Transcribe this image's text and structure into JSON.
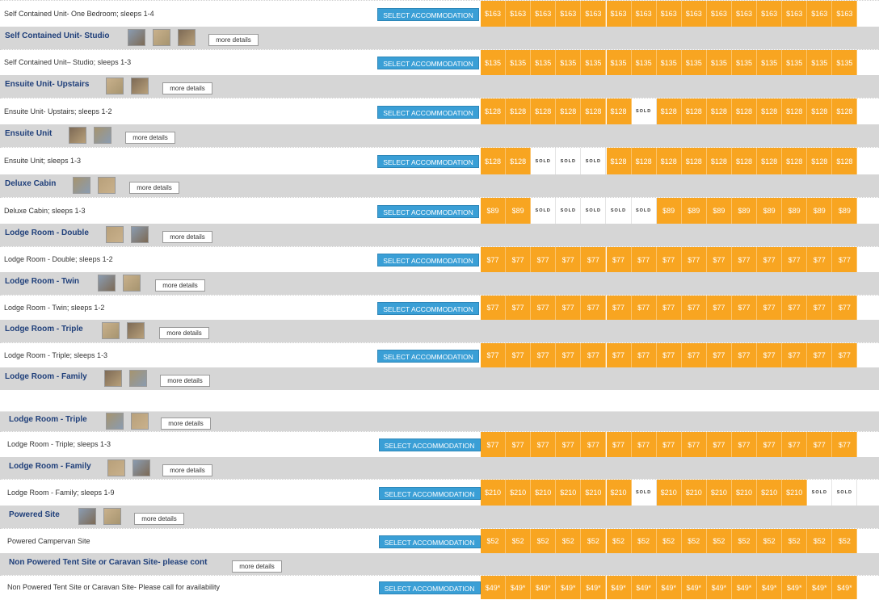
{
  "sections": [
    {
      "title": "",
      "thumbs": [],
      "more_label": "",
      "row_label": "Self Contained Unit- One Bedroom; sleeps 1-4",
      "select_label": "SELECT ACCOMMODATION",
      "cells": [
        "$163",
        "$163",
        "$163",
        "$163",
        "$163",
        "$163",
        "$163",
        "$163",
        "$163",
        "$163",
        "$163",
        "$163",
        "$163",
        "$163",
        "$163"
      ]
    },
    {
      "title": "Self Contained Unit- Studio",
      "thumbs": [
        "room-photo-icon",
        "room-photo-icon",
        "room-photo-icon"
      ],
      "more_label": "more details",
      "row_label": "Self Contained Unit– Studio; sleeps 1-3",
      "select_label": "SELECT ACCOMMODATION",
      "cells": [
        "$135",
        "$135",
        "$135",
        "$135",
        "$135",
        "$135",
        "$135",
        "$135",
        "$135",
        "$135",
        "$135",
        "$135",
        "$135",
        "$135",
        "$135"
      ]
    },
    {
      "title": "Ensuite Unit- Upstairs",
      "thumbs": [
        "room-photo-icon",
        "room-photo-icon"
      ],
      "more_label": "more details",
      "row_label": "Ensuite Unit- Upstairs; sleeps 1-2",
      "select_label": "SELECT ACCOMMODATION",
      "cells": [
        "$128",
        "$128",
        "$128",
        "$128",
        "$128",
        "$128",
        "SOLD",
        "$128",
        "$128",
        "$128",
        "$128",
        "$128",
        "$128",
        "$128",
        "$128"
      ]
    },
    {
      "title": "Ensuite Unit",
      "thumbs": [
        "room-photo-icon",
        "room-photo-icon"
      ],
      "more_label": "more details",
      "row_label": "Ensuite Unit; sleeps 1-3",
      "select_label": "SELECT ACCOMMODATION",
      "cells": [
        "$128",
        "$128",
        "SOLD",
        "SOLD",
        "SOLD",
        "$128",
        "$128",
        "$128",
        "$128",
        "$128",
        "$128",
        "$128",
        "$128",
        "$128",
        "$128"
      ]
    },
    {
      "title": "Deluxe Cabin",
      "thumbs": [
        "room-photo-icon",
        "room-photo-icon"
      ],
      "more_label": "more details",
      "row_label": "Deluxe Cabin; sleeps 1-3",
      "select_label": "SELECT ACCOMMODATION",
      "cells": [
        "$89",
        "$89",
        "SOLD",
        "SOLD",
        "SOLD",
        "SOLD",
        "SOLD",
        "$89",
        "$89",
        "$89",
        "$89",
        "$89",
        "$89",
        "$89",
        "$89"
      ]
    },
    {
      "title": "Lodge Room - Double",
      "thumbs": [
        "room-photo-icon",
        "room-photo-icon"
      ],
      "more_label": "more details",
      "row_label": "Lodge Room - Double; sleeps 1-2",
      "select_label": "SELECT ACCOMMODATION",
      "cells": [
        "$77",
        "$77",
        "$77",
        "$77",
        "$77",
        "$77",
        "$77",
        "$77",
        "$77",
        "$77",
        "$77",
        "$77",
        "$77",
        "$77",
        "$77"
      ]
    },
    {
      "title": "Lodge Room - Twin",
      "thumbs": [
        "room-photo-icon",
        "room-photo-icon"
      ],
      "more_label": "more details",
      "row_label": "Lodge Room - Twin; sleeps 1-2",
      "select_label": "SELECT ACCOMMODATION",
      "cells": [
        "$77",
        "$77",
        "$77",
        "$77",
        "$77",
        "$77",
        "$77",
        "$77",
        "$77",
        "$77",
        "$77",
        "$77",
        "$77",
        "$77",
        "$77"
      ]
    },
    {
      "title": "Lodge Room - Triple",
      "thumbs": [
        "room-photo-icon",
        "room-photo-icon"
      ],
      "more_label": "more details",
      "row_label": "Lodge Room - Triple; sleeps 1-3",
      "select_label": "SELECT ACCOMMODATION",
      "cells": [
        "$77",
        "$77",
        "$77",
        "$77",
        "$77",
        "$77",
        "$77",
        "$77",
        "$77",
        "$77",
        "$77",
        "$77",
        "$77",
        "$77",
        "$77"
      ]
    },
    {
      "title": "Lodge Room - Family",
      "thumbs": [
        "room-photo-icon",
        "room-photo-icon"
      ],
      "more_label": "more details",
      "row_label": "",
      "select_label": "",
      "cells": []
    },
    {
      "title": "Lodge Room - Triple",
      "thumbs": [
        "room-photo-icon",
        "room-photo-icon"
      ],
      "more_label": "more details",
      "row_label": "Lodge Room - Triple; sleeps 1-3",
      "select_label": "SELECT ACCOMMODATION",
      "cells": [
        "$77",
        "$77",
        "$77",
        "$77",
        "$77",
        "$77",
        "$77",
        "$77",
        "$77",
        "$77",
        "$77",
        "$77",
        "$77",
        "$77",
        "$77"
      ]
    },
    {
      "title": "Lodge Room - Family",
      "thumbs": [
        "room-photo-icon",
        "room-photo-icon"
      ],
      "more_label": "more details",
      "row_label": "Lodge Room - Family; sleeps 1-9",
      "select_label": "SELECT ACCOMMODATION",
      "cells": [
        "$210",
        "$210",
        "$210",
        "$210",
        "$210",
        "$210",
        "SOLD",
        "$210",
        "$210",
        "$210",
        "$210",
        "$210",
        "$210",
        "SOLD",
        "SOLD"
      ]
    },
    {
      "title": "Powered Site",
      "thumbs": [
        "room-photo-icon",
        "room-photo-icon"
      ],
      "more_label": "more details",
      "row_label": "Powered Campervan Site",
      "select_label": "SELECT ACCOMMODATION",
      "cells": [
        "$52",
        "$52",
        "$52",
        "$52",
        "$52",
        "$52",
        "$52",
        "$52",
        "$52",
        "$52",
        "$52",
        "$52",
        "$52",
        "$52",
        "$52"
      ]
    },
    {
      "title": "Non Powered Tent Site or Caravan Site- please cont",
      "thumbs": [],
      "more_label": "more details",
      "row_label": "Non Powered Tent Site or Caravan Site- Please call for availability",
      "select_label": "SELECT ACCOMMODATION",
      "cells": [
        "$49*",
        "$49*",
        "$49*",
        "$49*",
        "$49*",
        "$49*",
        "$49*",
        "$49*",
        "$49*",
        "$49*",
        "$49*",
        "$49*",
        "$49*",
        "$49*",
        "$49*"
      ]
    }
  ],
  "colors": {
    "price_cell": "#f8a521",
    "select_button": "#3a9fd6",
    "header_band": "#d6d6d6",
    "title_text": "#1f3f7a"
  }
}
